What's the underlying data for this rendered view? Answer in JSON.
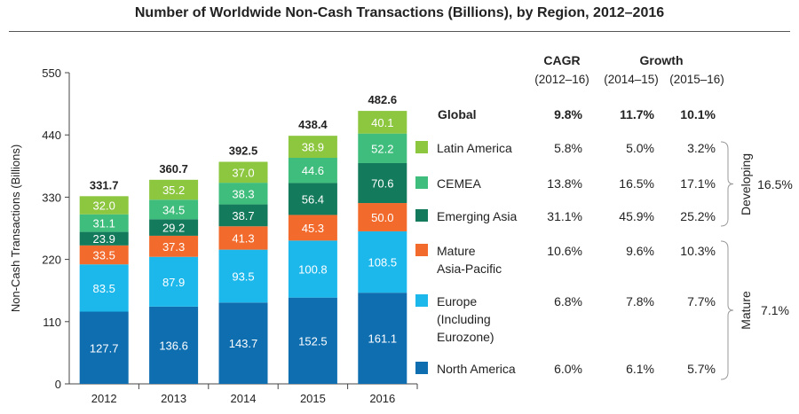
{
  "title": "Number of Worldwide Non-Cash Transactions (Billions), by Region, 2012–2016",
  "chart_data": {
    "type": "bar",
    "stacked": true,
    "categories": [
      "2012",
      "2013",
      "2014",
      "2015",
      "2016"
    ],
    "ylabel": "Non-Cash Transactions (Billions)",
    "ylim": [
      0,
      550
    ],
    "yticks": [
      "0",
      "110",
      "220",
      "330",
      "440",
      "550"
    ],
    "totals": [
      "331.7",
      "360.7",
      "392.5",
      "438.4",
      "482.6"
    ],
    "series": [
      {
        "name": "North America",
        "color": "#0f6eb0",
        "values": [
          127.7,
          136.6,
          143.7,
          152.5,
          161.1
        ],
        "labels": [
          "127.7",
          "136.6",
          "143.7",
          "152.5",
          "161.1"
        ]
      },
      {
        "name": "Europe (Including Eurozone)",
        "color": "#1cb8ec",
        "values": [
          83.5,
          87.9,
          93.5,
          100.8,
          108.5
        ],
        "labels": [
          "83.5",
          "87.9",
          "93.5",
          "100.8",
          "108.5"
        ]
      },
      {
        "name": "Mature Asia-Pacific",
        "color": "#f26b2d",
        "values": [
          33.5,
          37.3,
          41.3,
          45.3,
          50.0
        ],
        "labels": [
          "33.5",
          "37.3",
          "41.3",
          "45.3",
          "50.0"
        ]
      },
      {
        "name": "Emerging Asia",
        "color": "#147a5c",
        "values": [
          23.9,
          29.2,
          38.7,
          56.4,
          70.6
        ],
        "labels": [
          "23.9",
          "29.2",
          "38.7",
          "56.4",
          "70.6"
        ]
      },
      {
        "name": "CEMEA",
        "color": "#3fbd7c",
        "values": [
          31.1,
          34.5,
          38.3,
          44.6,
          52.2
        ],
        "labels": [
          "31.1",
          "34.5",
          "38.3",
          "44.6",
          "52.2"
        ]
      },
      {
        "name": "Latin America",
        "color": "#8dc63f",
        "values": [
          32.0,
          35.2,
          37.0,
          38.9,
          40.1
        ],
        "labels": [
          "32.0",
          "35.2",
          "37.0",
          "38.9",
          "40.1"
        ]
      }
    ]
  },
  "table": {
    "headers": {
      "cagr": "CAGR",
      "cagr_period": "(2012–16)",
      "growth": "Growth",
      "growth_period1": "(2014–15)",
      "growth_period2": "(2015–16)"
    },
    "global": {
      "label": "Global",
      "cagr": "9.8%",
      "g1415": "11.7%",
      "g1516": "10.1%"
    },
    "rows": [
      {
        "key": "latin",
        "color": "#8dc63f",
        "label_lines": [
          "Latin America"
        ],
        "cagr": "5.8%",
        "g1415": "5.0%",
        "g1516": "3.2%"
      },
      {
        "key": "cemea",
        "color": "#3fbd7c",
        "label_lines": [
          "CEMEA"
        ],
        "cagr": "13.8%",
        "g1415": "16.5%",
        "g1516": "17.1%"
      },
      {
        "key": "emerging-asia",
        "color": "#147a5c",
        "label_lines": [
          "Emerging Asia"
        ],
        "cagr": "31.1%",
        "g1415": "45.9%",
        "g1516": "25.2%"
      },
      {
        "key": "mature-apac",
        "color": "#f26b2d",
        "label_lines": [
          "Mature",
          "Asia-Pacific"
        ],
        "cagr": "10.6%",
        "g1415": "9.6%",
        "g1516": "10.3%"
      },
      {
        "key": "europe",
        "color": "#1cb8ec",
        "label_lines": [
          "Europe",
          "(Including",
          "Eurozone)"
        ],
        "cagr": "6.8%",
        "g1415": "7.8%",
        "g1516": "7.7%"
      },
      {
        "key": "north-america",
        "color": "#0f6eb0",
        "label_lines": [
          "North America"
        ],
        "cagr": "6.0%",
        "g1415": "6.1%",
        "g1516": "5.7%"
      }
    ],
    "groups": {
      "developing": {
        "label": "Developing",
        "value": "16.5%"
      },
      "mature": {
        "label": "Mature",
        "value": "7.1%"
      }
    }
  }
}
